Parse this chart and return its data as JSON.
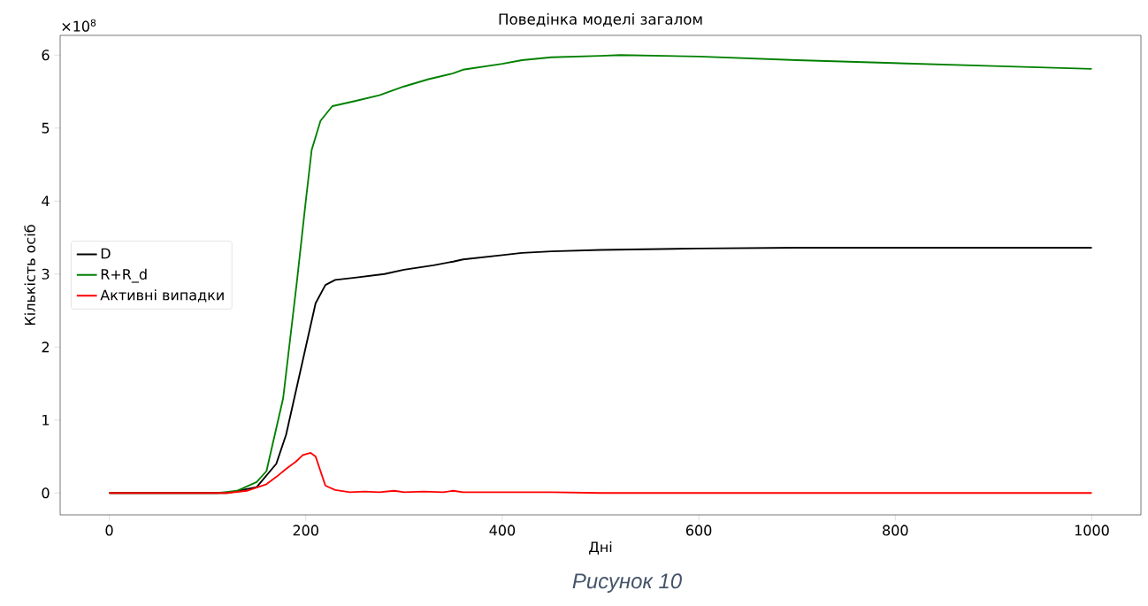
{
  "chart_data": {
    "type": "line",
    "title": "Поведінка моделі загалом",
    "xlabel": "Дні",
    "ylabel": "Кількість осіб",
    "annotations": [
      "×10$^{8}$",
      "*Рисунок 10*"
    ],
    "xlim": [
      -50,
      1050
    ],
    "ylim": [
      -0.3,
      6.27
    ],
    "xticks": [
      0,
      200,
      400,
      600,
      800,
      1000
    ],
    "yticks": [
      0,
      1,
      2,
      3,
      4,
      5,
      6
    ],
    "grid": false,
    "legend": "left",
    "line_style": "solid",
    "marker": "none",
    "series": [
      {
        "name": "D",
        "color": "#000000",
        "x": [
          0,
          60,
          120,
          150,
          170,
          180,
          190,
          200,
          210,
          220,
          230,
          250,
          280,
          300,
          330,
          350,
          360,
          400,
          420,
          450,
          500,
          600,
          700,
          1000
        ],
        "values": [
          0,
          0,
          0,
          0.08,
          0.4,
          0.8,
          1.4,
          2.0,
          2.6,
          2.85,
          2.92,
          2.95,
          3.0,
          3.06,
          3.12,
          3.17,
          3.2,
          3.26,
          3.29,
          3.31,
          3.33,
          3.35,
          3.36,
          3.36
        ]
      },
      {
        "name": "R+R_d",
        "color": "#008000",
        "x": [
          0,
          60,
          110,
          130,
          150,
          160,
          177,
          191,
          200,
          206,
          215,
          227,
          250,
          275,
          300,
          325,
          350,
          360,
          400,
          420,
          450,
          500,
          520,
          600,
          700,
          800,
          900,
          1000
        ],
        "values": [
          0,
          0,
          0,
          0.03,
          0.15,
          0.3,
          1.3,
          2.9,
          4.0,
          4.7,
          5.1,
          5.3,
          5.37,
          5.45,
          5.57,
          5.67,
          5.75,
          5.8,
          5.88,
          5.93,
          5.97,
          5.99,
          6.0,
          5.98,
          5.93,
          5.89,
          5.85,
          5.81
        ]
      },
      {
        "name": "Активні випадки",
        "color": "#ff0000",
        "x": [
          0,
          60,
          120,
          140,
          160,
          170,
          180,
          190,
          197,
          205,
          210,
          215,
          220,
          230,
          245,
          260,
          275,
          290,
          300,
          320,
          340,
          350,
          360,
          400,
          450,
          500,
          1000
        ],
        "values": [
          0,
          0,
          0,
          0.03,
          0.12,
          0.22,
          0.33,
          0.43,
          0.52,
          0.55,
          0.5,
          0.3,
          0.1,
          0.04,
          0.01,
          0.02,
          0.01,
          0.03,
          0.01,
          0.02,
          0.01,
          0.03,
          0.01,
          0.01,
          0.01,
          0,
          0
        ]
      }
    ]
  }
}
